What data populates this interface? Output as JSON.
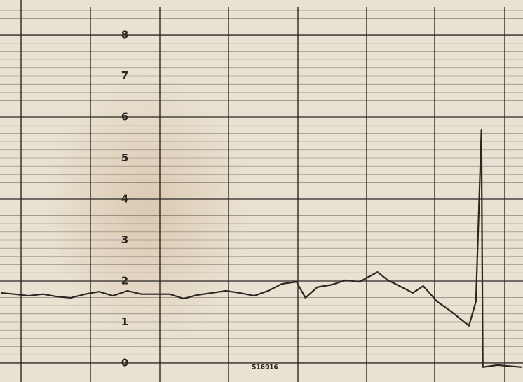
{
  "chart_data": {
    "type": "line",
    "x": [
      -0.25,
      -0.05,
      0.15,
      0.36,
      0.56,
      0.76,
      0.97,
      1.17,
      1.37,
      1.58,
      1.78,
      1.98,
      2.19,
      2.39,
      2.59,
      2.8,
      3.0,
      3.2,
      3.41,
      3.61,
      3.81,
      4.02,
      4.15,
      4.32,
      4.53,
      4.73,
      4.93,
      5.19,
      5.34,
      5.54,
      5.7,
      5.85,
      6.05,
      6.26,
      6.51,
      6.61,
      6.69,
      6.71,
      6.92,
      7.27
    ],
    "values": [
      1.71,
      1.68,
      1.64,
      1.68,
      1.62,
      1.59,
      1.68,
      1.74,
      1.64,
      1.76,
      1.68,
      1.68,
      1.68,
      1.57,
      1.66,
      1.71,
      1.76,
      1.71,
      1.64,
      1.76,
      1.93,
      1.98,
      1.59,
      1.85,
      1.91,
      2.02,
      1.98,
      2.22,
      2.02,
      1.85,
      1.71,
      1.88,
      1.5,
      1.25,
      0.91,
      1.5,
      5.69,
      -0.1,
      -0.05,
      -0.1
    ],
    "color": "#2a2622",
    "xlim": [
      -0.26,
      7.29
    ],
    "ylim": [
      -0.3,
      8.3
    ],
    "yticks": [
      0,
      1,
      2,
      3,
      4,
      5,
      6,
      7,
      8
    ],
    "grid": true,
    "annotation": "516916"
  }
}
